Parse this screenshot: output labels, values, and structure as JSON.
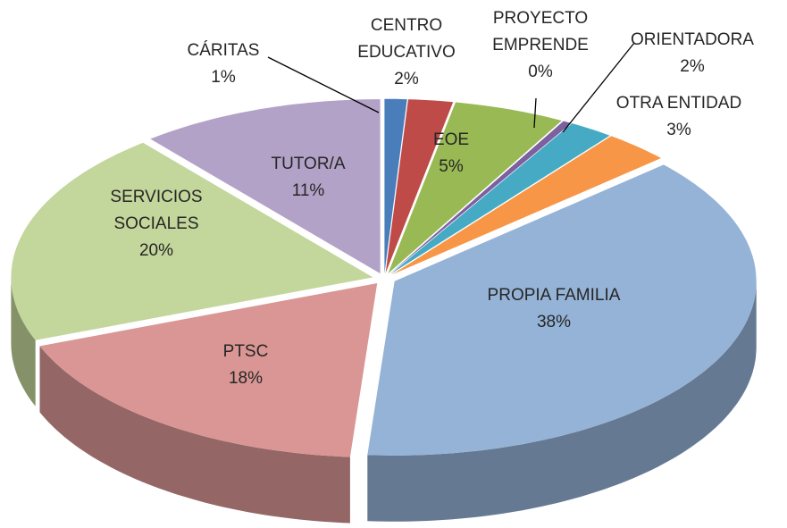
{
  "chart_data": {
    "type": "pie",
    "categories": [
      "CÁRITAS",
      "CENTRO\nEDUCATIVO",
      "EOE",
      "PROYECTO\nEMPRENDE",
      "ORIENTADORA",
      "OTRA ENTIDAD",
      "PROPIA FAMILIA",
      "PTSC",
      "SERVICIOS\nSOCIALES",
      "TUTOR/A"
    ],
    "values": [
      1,
      2,
      5,
      0.4,
      2,
      3,
      38,
      18,
      20,
      11
    ],
    "value_labels": [
      "1%",
      "2%",
      "5%",
      "0%",
      "2%",
      "3%",
      "38%",
      "18%",
      "20%",
      "11%"
    ],
    "colors": [
      "#4a7ebb",
      "#be4b48",
      "#98b954",
      "#7d60a0",
      "#46aac5",
      "#f79646",
      "#95b3d7",
      "#d99694",
      "#c3d69b",
      "#b3a2c7"
    ]
  }
}
